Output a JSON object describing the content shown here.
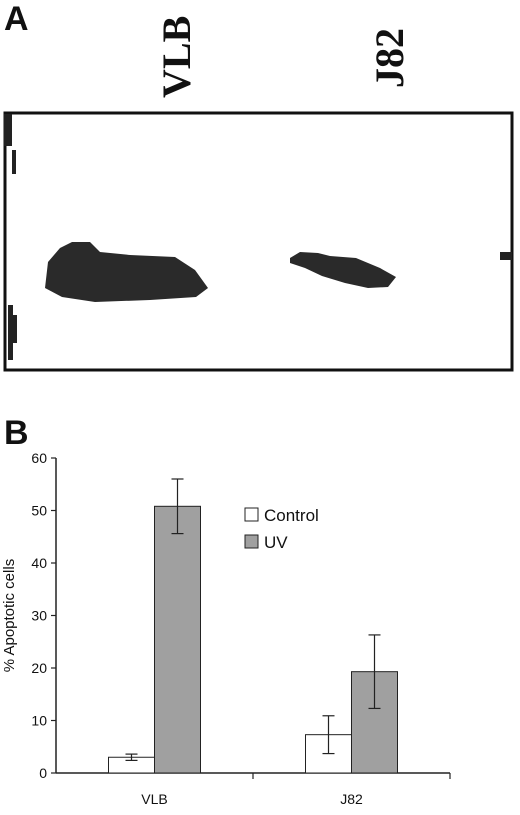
{
  "panels": {
    "a_label": "A",
    "b_label": "B"
  },
  "blot": {
    "lanes": [
      "VLB",
      "J82"
    ]
  },
  "chart_data": {
    "type": "bar",
    "categories": [
      "VLB",
      "J82"
    ],
    "series": [
      {
        "name": "Control",
        "values": [
          3,
          7.3
        ],
        "errors": [
          0.6,
          3.6
        ],
        "color": "#ffffff"
      },
      {
        "name": "UV",
        "values": [
          50.8,
          19.3
        ],
        "errors": [
          5.2,
          7
        ],
        "color": "#a0a0a0"
      }
    ],
    "xlabel": "",
    "ylabel": "% Apoptotic cells",
    "ylim": [
      0,
      60
    ],
    "yticks": [
      0,
      10,
      20,
      30,
      40,
      50,
      60
    ],
    "legend_position": "top-right",
    "grid": false
  }
}
